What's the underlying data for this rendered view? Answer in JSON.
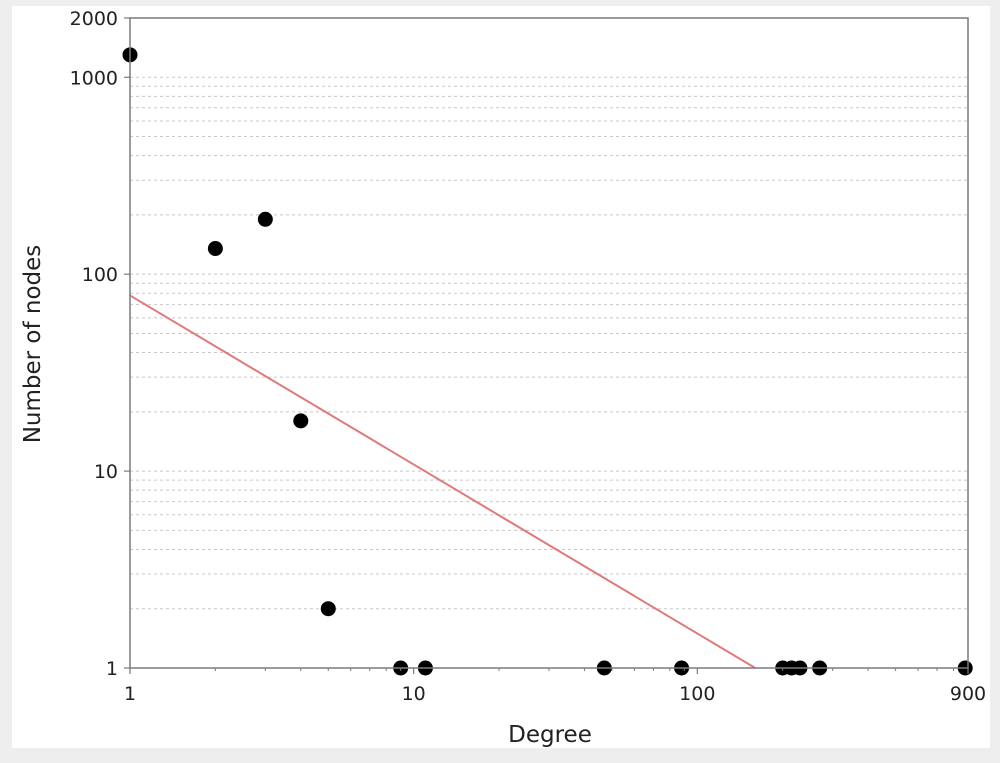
{
  "chart_data": {
    "type": "scatter",
    "title": "",
    "xlabel": "Degree",
    "ylabel": "Number of nodes",
    "x_scale": "log",
    "y_scale": "log",
    "xlim": [
      1,
      900
    ],
    "ylim": [
      1,
      2000
    ],
    "x_ticks": [
      {
        "value": 1,
        "label": "1"
      },
      {
        "value": 10,
        "label": "10"
      },
      {
        "value": 100,
        "label": "100"
      },
      {
        "value": 900,
        "label": "900"
      }
    ],
    "y_ticks": [
      {
        "value": 1,
        "label": "1"
      },
      {
        "value": 10,
        "label": "10"
      },
      {
        "value": 100,
        "label": "100"
      },
      {
        "value": 1000,
        "label": "1000"
      },
      {
        "value": 2000,
        "label": "2000"
      }
    ],
    "grid": "horizontal dashed",
    "legend": "none",
    "colors": {
      "points": "#000000",
      "fit_line": "#e07a7a",
      "frame": "#7a7a7a",
      "background": "#ffffff",
      "outer_background": "#eeeeee"
    },
    "series": [
      {
        "kind": "points",
        "points": [
          {
            "x": 1,
            "y": 1300
          },
          {
            "x": 2,
            "y": 135
          },
          {
            "x": 3,
            "y": 190
          },
          {
            "x": 4,
            "y": 18
          },
          {
            "x": 5,
            "y": 2
          },
          {
            "x": 9,
            "y": 1
          },
          {
            "x": 11,
            "y": 1
          },
          {
            "x": 47,
            "y": 1
          },
          {
            "x": 88,
            "y": 1
          },
          {
            "x": 200,
            "y": 1
          },
          {
            "x": 215,
            "y": 1
          },
          {
            "x": 230,
            "y": 1
          },
          {
            "x": 270,
            "y": 1
          },
          {
            "x": 880,
            "y": 1
          }
        ]
      },
      {
        "kind": "fit_line",
        "points": [
          {
            "x": 1,
            "y": 78
          },
          {
            "x": 160,
            "y": 1
          }
        ]
      }
    ]
  }
}
